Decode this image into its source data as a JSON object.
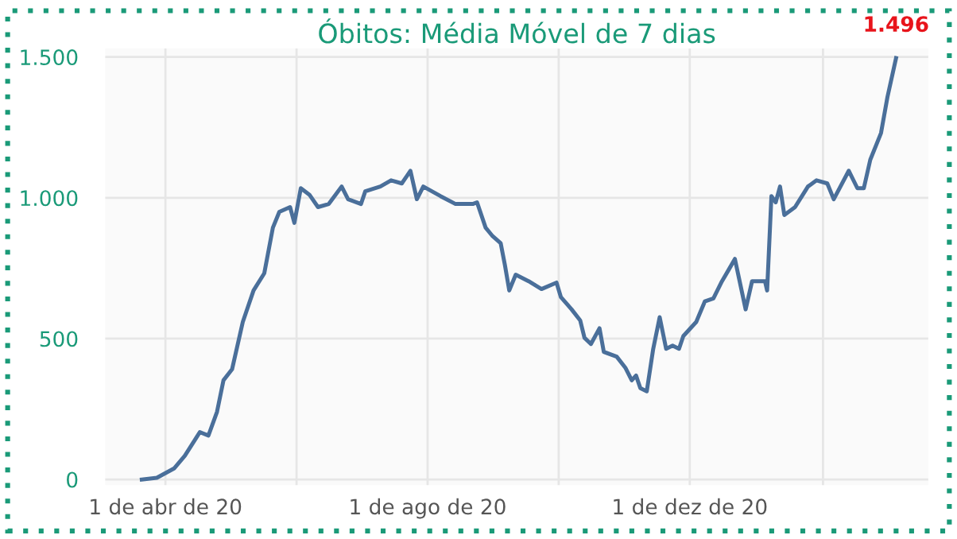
{
  "chart_data": {
    "type": "line",
    "title": "Óbitos: Média Móvel de 7 dias",
    "x": [
      "2020-03-21",
      "2020-03-28",
      "2020-04-05",
      "2020-04-10",
      "2020-04-17",
      "2020-04-21",
      "2020-04-25",
      "2020-04-28",
      "2020-05-02",
      "2020-05-07",
      "2020-05-12",
      "2020-05-17",
      "2020-05-21",
      "2020-05-24",
      "2020-05-29",
      "2020-05-31",
      "2020-06-03",
      "2020-06-07",
      "2020-06-11",
      "2020-06-16",
      "2020-06-22",
      "2020-06-25",
      "2020-07-01",
      "2020-07-03",
      "2020-07-10",
      "2020-07-15",
      "2020-07-20",
      "2020-07-24",
      "2020-07-27",
      "2020-07-30",
      "2020-08-07",
      "2020-08-14",
      "2020-08-22",
      "2020-08-24",
      "2020-08-28",
      "2020-08-31",
      "2020-09-04",
      "2020-09-06",
      "2020-09-08",
      "2020-09-11",
      "2020-09-17",
      "2020-09-23",
      "2020-09-30",
      "2020-10-02",
      "2020-10-07",
      "2020-10-11",
      "2020-10-13",
      "2020-10-16",
      "2020-10-20",
      "2020-10-22",
      "2020-10-28",
      "2020-11-01",
      "2020-11-04",
      "2020-11-06",
      "2020-11-08",
      "2020-11-11",
      "2020-11-14",
      "2020-11-17",
      "2020-11-20",
      "2020-11-23",
      "2020-11-26",
      "2020-11-28",
      "2020-12-04",
      "2020-12-08",
      "2020-12-12",
      "2020-12-16",
      "2020-12-19",
      "2020-12-22",
      "2020-12-27",
      "2020-12-30",
      "2021-01-05",
      "2021-01-06",
      "2021-01-08",
      "2021-01-10",
      "2021-01-12",
      "2021-01-14",
      "2021-01-19",
      "2021-01-25",
      "2021-01-29",
      "2021-02-03",
      "2021-02-06",
      "2021-02-13",
      "2021-02-17",
      "2021-02-20",
      "2021-02-23",
      "2021-02-28",
      "2021-03-03",
      "2021-03-07"
    ],
    "series": [
      {
        "color": "#4a6f9a",
        "values": [
          0,
          6,
          39,
          84,
          168,
          156,
          240,
          352,
          391,
          559,
          671,
          732,
          894,
          950,
          967,
          911,
          1034,
          1011,
          967,
          978,
          1040,
          995,
          978,
          1023,
          1040,
          1062,
          1051,
          1096,
          995,
          1040,
          1006,
          978,
          978,
          984,
          894,
          866,
          839,
          760,
          671,
          727,
          704,
          676,
          699,
          648,
          604,
          565,
          503,
          481,
          537,
          453,
          436,
          397,
          352,
          369,
          324,
          313,
          464,
          576,
          464,
          475,
          464,
          509,
          559,
          632,
          643,
          704,
          743,
          783,
          604,
          704,
          704,
          671,
          1006,
          984,
          1040,
          939,
          967,
          1040,
          1062,
          1051,
          995,
          1096,
          1034,
          1034,
          1135,
          1230,
          1358,
          1496
        ]
      }
    ],
    "xlim": [
      "2020-03-04",
      "2021-03-22"
    ],
    "xticks": [
      {
        "value": "2020-04-01",
        "label": "1 de abr de 20"
      },
      {
        "value": "2020-06-01",
        "label": null
      },
      {
        "value": "2020-08-01",
        "label": "1 de ago de 20"
      },
      {
        "value": "2020-10-01",
        "label": null
      },
      {
        "value": "2020-12-01",
        "label": "1 de dez de 20"
      },
      {
        "value": "2021-02-01",
        "label": null
      }
    ],
    "ylim": [
      -20,
      1530
    ],
    "yticks": [
      0,
      500,
      {
        "value": 1000,
        "label": "1.000"
      },
      {
        "value": 1500,
        "label": "1.500"
      }
    ],
    "grid": true,
    "legend": false,
    "marker": "none",
    "line_style": "solid",
    "annotations": [
      {
        "text": "1.496",
        "x": "2021-03-07",
        "y": 1496
      }
    ]
  }
}
